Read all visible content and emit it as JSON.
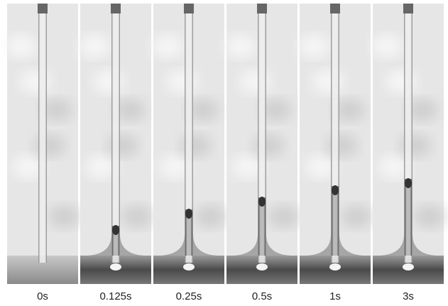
{
  "panels": [
    {
      "label": "0s"
    },
    {
      "label": "0.125s"
    },
    {
      "label": "0.25s"
    },
    {
      "label": "0.5s"
    },
    {
      "label": "1s"
    },
    {
      "label": "3s"
    }
  ]
}
